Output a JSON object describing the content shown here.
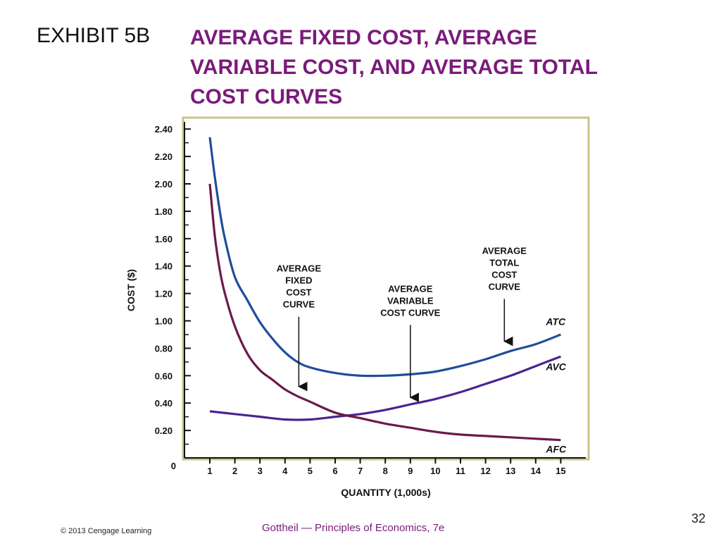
{
  "slide": {
    "exhibit": "EXHIBIT 5B",
    "title_lines": [
      "AVERAGE FIXED COST, AVERAGE",
      "VARIABLE COST, AND AVERAGE TOTAL",
      "COST CURVES"
    ],
    "copyright": "© 2013 Cengage Learning",
    "source": "Gottheil — Principles of Economics, 7e",
    "page_number": "32"
  },
  "chart_data": {
    "type": "line",
    "xlabel": "QUANTITY (1,000s)",
    "ylabel": "COST ($)",
    "xlim": [
      0,
      15.7
    ],
    "ylim": [
      0,
      2.45
    ],
    "x_ticks": [
      "1",
      "2",
      "3",
      "4",
      "5",
      "6",
      "7",
      "8",
      "9",
      "10",
      "11",
      "12",
      "13",
      "14",
      "15"
    ],
    "y_ticks": [
      "0",
      "0.20",
      "0.40",
      "0.60",
      "0.80",
      "1.00",
      "1.20",
      "1.40",
      "1.60",
      "1.80",
      "2.00",
      "2.20",
      "2.40"
    ],
    "y_tick_values": [
      0,
      0.2,
      0.4,
      0.6,
      0.8,
      1.0,
      1.2,
      1.4,
      1.6,
      1.8,
      2.0,
      2.2,
      2.4
    ],
    "grid": false,
    "series": [
      {
        "name": "ATC",
        "color": "#1f4e99",
        "x": [
          1,
          1.2,
          1.4,
          1.6,
          2,
          2.5,
          3,
          3.5,
          4,
          4.5,
          5,
          6,
          7,
          8,
          9,
          10,
          11,
          12,
          13,
          14,
          15
        ],
        "y": [
          2.34,
          2.05,
          1.8,
          1.6,
          1.32,
          1.15,
          0.99,
          0.87,
          0.77,
          0.7,
          0.66,
          0.62,
          0.6,
          0.6,
          0.61,
          0.63,
          0.67,
          0.72,
          0.78,
          0.83,
          0.9
        ]
      },
      {
        "name": "AVC",
        "color": "#4b2394",
        "x": [
          1,
          2,
          3,
          4,
          5,
          6,
          7,
          8,
          9,
          10,
          11,
          12,
          13,
          14,
          15
        ],
        "y": [
          0.34,
          0.32,
          0.3,
          0.28,
          0.28,
          0.3,
          0.32,
          0.35,
          0.39,
          0.43,
          0.48,
          0.54,
          0.6,
          0.67,
          0.74
        ]
      },
      {
        "name": "AFC",
        "color": "#6b1a4b",
        "x": [
          1,
          1.2,
          1.4,
          1.6,
          2,
          2.5,
          3,
          3.5,
          4,
          4.5,
          5,
          6,
          7,
          8,
          9,
          10,
          11,
          12,
          13,
          14,
          15
        ],
        "y": [
          2.0,
          1.62,
          1.37,
          1.2,
          0.96,
          0.76,
          0.64,
          0.57,
          0.5,
          0.45,
          0.41,
          0.33,
          0.29,
          0.25,
          0.22,
          0.19,
          0.17,
          0.16,
          0.15,
          0.14,
          0.13
        ]
      }
    ],
    "callouts": [
      {
        "lines": [
          "AVERAGE",
          "FIXED",
          "COST",
          "CURVE"
        ],
        "x": 4.55,
        "arrow_from": 1.03,
        "arrow_to": 0.49
      },
      {
        "lines": [
          "AVERAGE",
          "VARIABLE",
          "COST CURVE"
        ],
        "x": 9.0,
        "arrow_from": 0.97,
        "arrow_to": 0.41
      },
      {
        "lines": [
          "AVERAGE",
          "TOTAL",
          "COST",
          "CURVE"
        ],
        "x": 12.75,
        "arrow_from": 1.16,
        "arrow_to": 0.82
      }
    ],
    "series_labels": [
      {
        "text": "ATC",
        "x": 15,
        "y": 0.995
      },
      {
        "text": "AVC",
        "x": 15,
        "y": 0.665
      },
      {
        "text": "AFC",
        "x": 15,
        "y": 0.065
      }
    ]
  }
}
